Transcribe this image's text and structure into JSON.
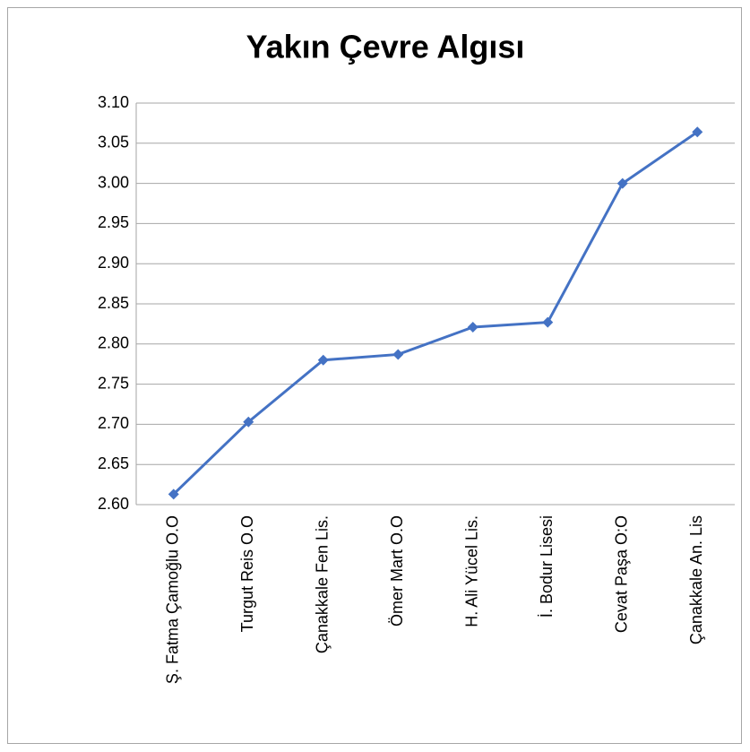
{
  "chart_data": {
    "type": "line",
    "title": "Yakın Çevre Algısı",
    "categories": [
      "Ş. Fatma Çamoğlu O.O",
      "Turgut Reis O.O",
      "Çanakkale Fen Lis.",
      "Ömer Mart O.O",
      "H. Ali Yücel Lis.",
      "İ. Bodur Lisesi",
      "Cevat Paşa O:O",
      "Çanakkale An. Lis"
    ],
    "values": [
      2.613,
      2.703,
      2.78,
      2.787,
      2.821,
      2.827,
      3.0,
      3.064
    ],
    "color": "#4472c4",
    "ylim": [
      2.6,
      3.1
    ],
    "yticks": [
      {
        "value": 2.6,
        "label": "2.60"
      },
      2.65,
      {
        "value": 2.7,
        "label": "2.70"
      },
      2.75,
      {
        "value": 2.8,
        "label": "2.80"
      },
      2.85,
      {
        "value": 2.9,
        "label": "2.90"
      },
      2.95,
      {
        "value": 3.0,
        "label": "3.00"
      },
      3.05,
      {
        "value": 3.1,
        "label": "3.10"
      }
    ],
    "grid": true
  }
}
